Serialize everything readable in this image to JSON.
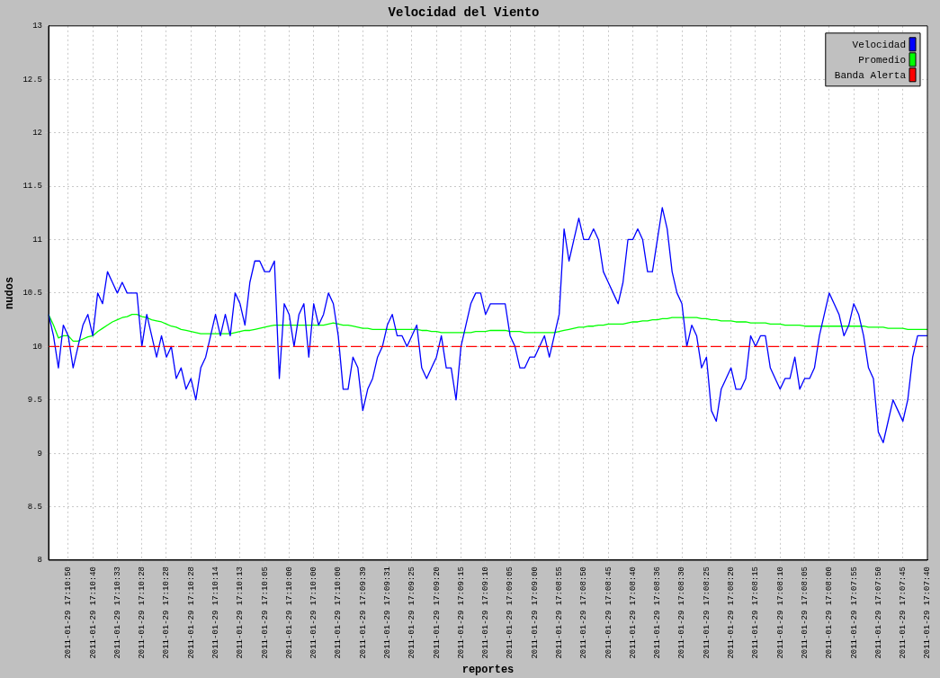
{
  "chart_data": {
    "type": "line",
    "title": "Velocidad del Viento",
    "xlabel": "reportes",
    "ylabel": "nudos",
    "categories": [
      null,
      null,
      null,
      null,
      "2011-01-29 17:10:50",
      null,
      null,
      null,
      null,
      "2011-01-29 17:10:40",
      null,
      null,
      null,
      null,
      "2011-01-29 17:10:33",
      null,
      null,
      null,
      null,
      "2011-01-29 17:10:28",
      null,
      null,
      null,
      null,
      "2011-01-29 17:10:28",
      null,
      null,
      null,
      null,
      "2011-01-29 17:10:28",
      null,
      null,
      null,
      null,
      "2011-01-29 17:10:14",
      null,
      null,
      null,
      null,
      "2011-01-29 17:10:13",
      null,
      null,
      null,
      null,
      "2011-01-29 17:10:05",
      null,
      null,
      null,
      null,
      "2011-01-29 17:10:00",
      null,
      null,
      null,
      null,
      "2011-01-29 17:10:00",
      null,
      null,
      null,
      null,
      "2011-01-29 17:10:00",
      null,
      null,
      null,
      null,
      "2011-01-29 17:09:39",
      null,
      null,
      null,
      null,
      "2011-01-29 17:09:31",
      null,
      null,
      null,
      null,
      "2011-01-29 17:09:25",
      null,
      null,
      null,
      null,
      "2011-01-29 17:09:20",
      null,
      null,
      null,
      null,
      "2011-01-29 17:09:15",
      null,
      null,
      null,
      null,
      "2011-01-29 17:09:10",
      null,
      null,
      null,
      null,
      "2011-01-29 17:09:05",
      null,
      null,
      null,
      null,
      "2011-01-29 17:09:00",
      null,
      null,
      null,
      null,
      "2011-01-29 17:08:55",
      null,
      null,
      null,
      null,
      "2011-01-29 17:08:50",
      null,
      null,
      null,
      null,
      "2011-01-29 17:08:45",
      null,
      null,
      null,
      null,
      "2011-01-29 17:08:40",
      null,
      null,
      null,
      null,
      "2011-01-29 17:08:36",
      null,
      null,
      null,
      null,
      "2011-01-29 17:08:30",
      null,
      null,
      null,
      null,
      "2011-01-29 17:08:25",
      null,
      null,
      null,
      null,
      "2011-01-29 17:08:20",
      null,
      null,
      null,
      null,
      "2011-01-29 17:08:15",
      null,
      null,
      null,
      null,
      "2011-01-29 17:08:10",
      null,
      null,
      null,
      null,
      "2011-01-29 17:08:05",
      null,
      null,
      null,
      null,
      "2011-01-29 17:08:00",
      null,
      null,
      null,
      null,
      "2011-01-29 17:07:55",
      null,
      null,
      null,
      null,
      "2011-01-29 17:07:50",
      null,
      null,
      null,
      null,
      "2011-01-29 17:07:45",
      null,
      null,
      null,
      null,
      "2011-01-29 17:07:40"
    ],
    "series": [
      {
        "name": "Velocidad",
        "color": "#0000ff",
        "values": [
          10.3,
          10.1,
          9.8,
          10.2,
          10.1,
          9.8,
          10.0,
          10.2,
          10.3,
          10.1,
          10.5,
          10.4,
          10.7,
          10.6,
          10.5,
          10.6,
          10.5,
          10.5,
          10.5,
          10.0,
          10.3,
          10.1,
          9.9,
          10.1,
          9.9,
          10.0,
          9.7,
          9.8,
          9.6,
          9.7,
          9.5,
          9.8,
          9.9,
          10.1,
          10.3,
          10.1,
          10.3,
          10.1,
          10.5,
          10.4,
          10.2,
          10.6,
          10.8,
          10.8,
          10.7,
          10.7,
          10.8,
          9.7,
          10.4,
          10.3,
          10.0,
          10.3,
          10.4,
          9.9,
          10.4,
          10.2,
          10.3,
          10.5,
          10.4,
          10.1,
          9.6,
          9.6,
          9.9,
          9.8,
          9.4,
          9.6,
          9.7,
          9.9,
          10.0,
          10.2,
          10.3,
          10.1,
          10.1,
          10.0,
          10.1,
          10.2,
          9.8,
          9.7,
          9.8,
          9.9,
          10.1,
          9.8,
          9.8,
          9.5,
          10.0,
          10.2,
          10.4,
          10.5,
          10.5,
          10.3,
          10.4,
          10.4,
          10.4,
          10.4,
          10.1,
          10.0,
          9.8,
          9.8,
          9.9,
          9.9,
          10.0,
          10.1,
          9.9,
          10.1,
          10.3,
          11.1,
          10.8,
          11.0,
          11.2,
          11.0,
          11.0,
          11.1,
          11.0,
          10.7,
          10.6,
          10.5,
          10.4,
          10.6,
          11.0,
          11.0,
          11.1,
          11.0,
          10.7,
          10.7,
          11.0,
          11.3,
          11.1,
          10.7,
          10.5,
          10.4,
          10.0,
          10.2,
          10.1,
          9.8,
          9.9,
          9.4,
          9.3,
          9.6,
          9.7,
          9.8,
          9.6,
          9.6,
          9.7,
          10.1,
          10.0,
          10.1,
          10.1,
          9.8,
          9.7,
          9.6,
          9.7,
          9.7,
          9.9,
          9.6,
          9.7,
          9.7,
          9.8,
          10.1,
          10.3,
          10.5,
          10.4,
          10.3,
          10.1,
          10.2,
          10.4,
          10.3,
          10.1,
          9.8,
          9.7,
          9.2,
          9.1,
          9.3,
          9.5,
          9.4,
          9.3,
          9.5,
          9.9,
          10.1,
          10.1,
          10.1
        ]
      },
      {
        "name": "Promedio",
        "color": "#00ff00",
        "values": [
          10.3,
          10.2,
          10.08,
          10.1,
          10.1,
          10.05,
          10.05,
          10.07,
          10.09,
          10.1,
          10.14,
          10.17,
          10.2,
          10.23,
          10.25,
          10.27,
          10.28,
          10.3,
          10.3,
          10.28,
          10.27,
          10.25,
          10.24,
          10.23,
          10.21,
          10.19,
          10.18,
          10.16,
          10.15,
          10.14,
          10.13,
          10.12,
          10.12,
          10.12,
          10.12,
          10.12,
          10.12,
          10.12,
          10.13,
          10.14,
          10.15,
          10.15,
          10.16,
          10.17,
          10.18,
          10.19,
          10.2,
          10.2,
          10.2,
          10.2,
          10.2,
          10.2,
          10.2,
          10.2,
          10.2,
          10.2,
          10.2,
          10.21,
          10.22,
          10.21,
          10.2,
          10.2,
          10.19,
          10.18,
          10.17,
          10.17,
          10.16,
          10.16,
          10.16,
          10.16,
          10.16,
          10.16,
          10.16,
          10.16,
          10.16,
          10.16,
          10.15,
          10.15,
          10.14,
          10.14,
          10.13,
          10.13,
          10.13,
          10.13,
          10.13,
          10.13,
          10.13,
          10.14,
          10.14,
          10.14,
          10.15,
          10.15,
          10.15,
          10.15,
          10.14,
          10.14,
          10.14,
          10.13,
          10.13,
          10.13,
          10.13,
          10.13,
          10.13,
          10.13,
          10.14,
          10.15,
          10.16,
          10.17,
          10.18,
          10.18,
          10.19,
          10.19,
          10.2,
          10.2,
          10.21,
          10.21,
          10.21,
          10.21,
          10.22,
          10.23,
          10.23,
          10.24,
          10.24,
          10.25,
          10.25,
          10.26,
          10.26,
          10.27,
          10.27,
          10.27,
          10.27,
          10.27,
          10.27,
          10.26,
          10.26,
          10.25,
          10.25,
          10.24,
          10.24,
          10.24,
          10.23,
          10.23,
          10.23,
          10.22,
          10.22,
          10.22,
          10.22,
          10.21,
          10.21,
          10.21,
          10.2,
          10.2,
          10.2,
          10.2,
          10.19,
          10.19,
          10.19,
          10.19,
          10.19,
          10.19,
          10.19,
          10.19,
          10.19,
          10.19,
          10.19,
          10.19,
          10.19,
          10.18,
          10.18,
          10.18,
          10.18,
          10.17,
          10.17,
          10.17,
          10.17,
          10.16,
          10.16,
          10.16,
          10.16,
          10.16
        ]
      }
    ],
    "ref_lines": [
      {
        "axis": "y",
        "value": 10,
        "label": "Banda Alerta",
        "color": "#ff0000",
        "line_style": "dashed"
      }
    ],
    "ylim": [
      8,
      13
    ],
    "yticks": [
      8,
      8.5,
      9,
      9.5,
      10,
      10.5,
      11,
      11.5,
      12,
      12.5,
      13
    ],
    "grid": true,
    "legend": "top right",
    "marker": "none",
    "line_style": "solid"
  }
}
